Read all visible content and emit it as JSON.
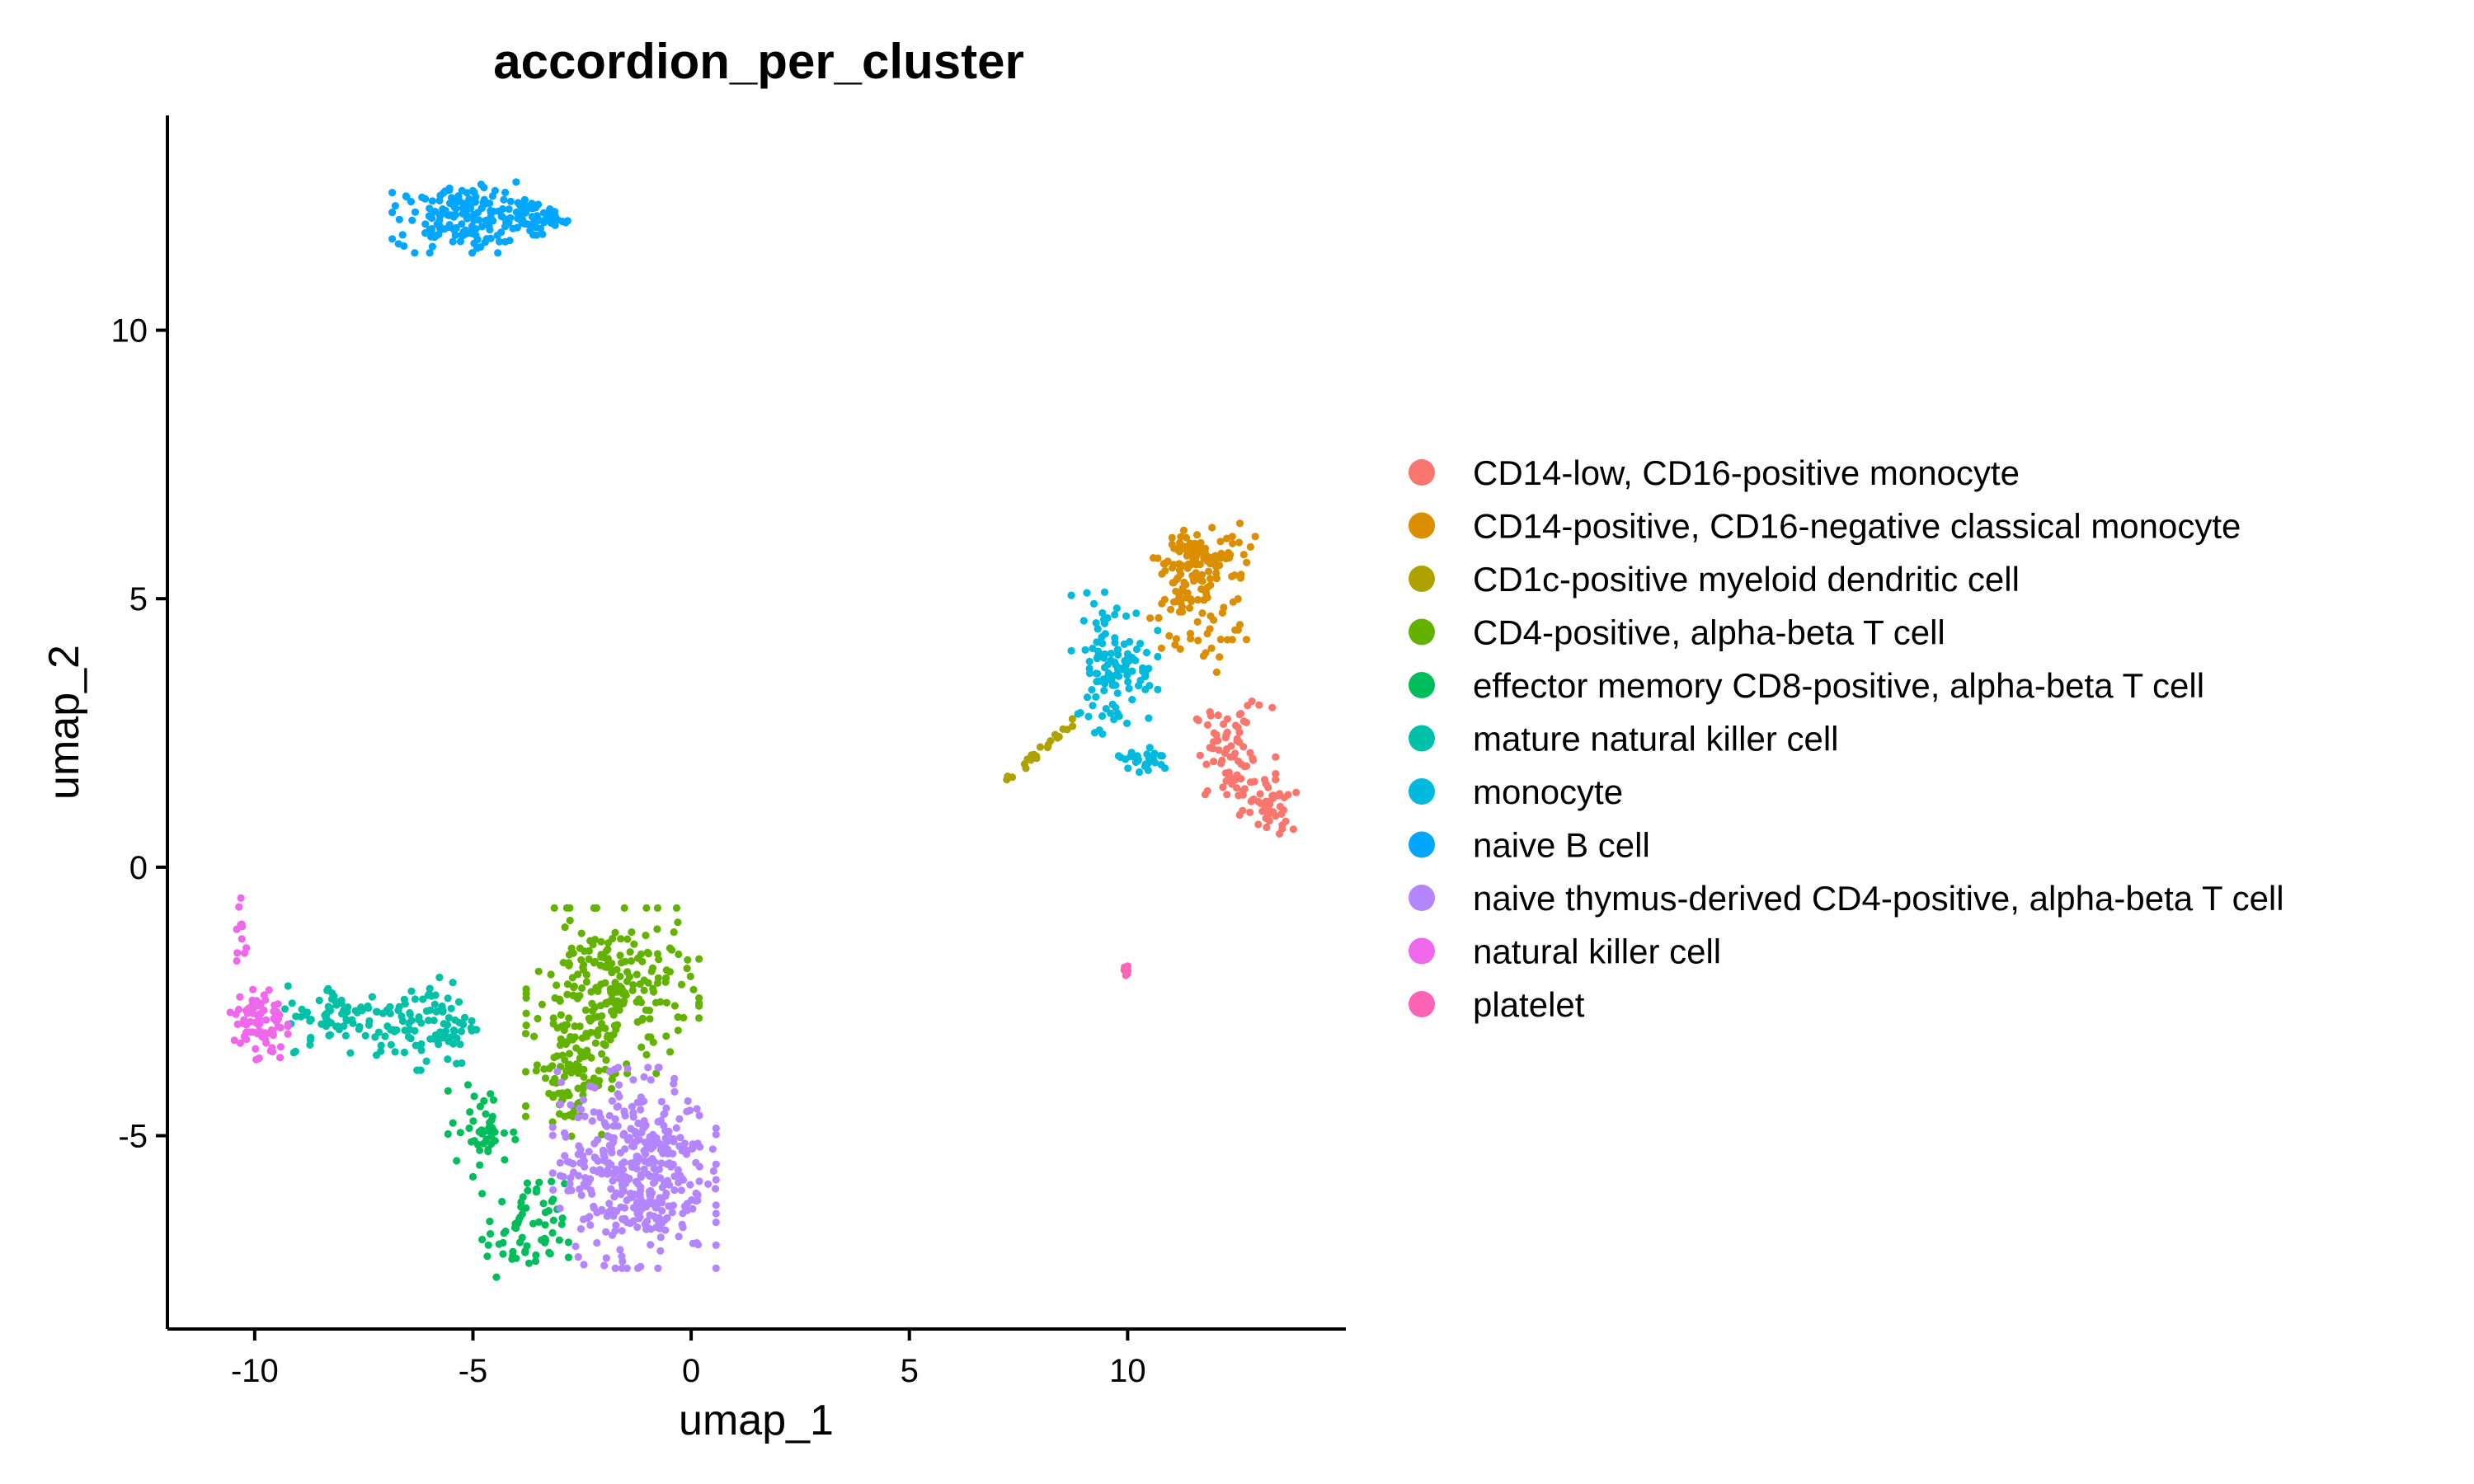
{
  "chart_data": {
    "type": "scatter",
    "title": "accordion_per_cluster",
    "xlabel": "umap_1",
    "ylabel": "umap_2",
    "xlim": [
      -12,
      15
    ],
    "ylim": [
      -8.6,
      14
    ],
    "xticks": [
      -10,
      -5,
      0,
      5,
      10
    ],
    "yticks": [
      -5,
      0,
      5,
      10
    ],
    "xtick_labels": [
      "-10",
      "-5",
      "0",
      "5",
      "10"
    ],
    "ytick_labels": [
      "-5",
      "0",
      "5",
      "10"
    ],
    "grid": false,
    "legend_position": "right",
    "series": [
      {
        "name": "CD14-low, CD16-positive monocyte",
        "color": "#F8766D",
        "count": 120,
        "clusters": [
          {
            "cx": 12.4,
            "cy": 2.1,
            "sx": 0.45,
            "sy": 0.45,
            "weight": 0.6
          },
          {
            "cx": 13.2,
            "cy": 1.1,
            "sx": 0.3,
            "sy": 0.25,
            "weight": 0.4
          }
        ]
      },
      {
        "name": "CD14-positive, CD16-negative classical monocyte",
        "color": "#DB8E00",
        "count": 160,
        "clusters": [
          {
            "cx": 11.8,
            "cy": 5.8,
            "sx": 0.55,
            "sy": 0.3,
            "weight": 0.6
          },
          {
            "cx": 11.2,
            "cy": 4.8,
            "sx": 0.35,
            "sy": 0.45,
            "weight": 0.3
          },
          {
            "cx": 12.3,
            "cy": 4.4,
            "sx": 0.25,
            "sy": 0.35,
            "weight": 0.1
          }
        ]
      },
      {
        "name": "CD1c-positive myeloid dendritic cell",
        "color": "#AEA200",
        "count": 22,
        "line": {
          "x0": 7.2,
          "y0": 1.6,
          "x1": 8.8,
          "y1": 2.7,
          "spread": 0.05
        }
      },
      {
        "name": "CD4-positive, alpha-beta T cell",
        "color": "#64B200",
        "count": 330,
        "clusters": [
          {
            "cx": -1.8,
            "cy": -2.3,
            "sx": 0.9,
            "sy": 0.7,
            "weight": 0.7
          },
          {
            "cx": -2.8,
            "cy": -3.8,
            "sx": 0.45,
            "sy": 0.55,
            "weight": 0.3
          }
        ]
      },
      {
        "name": "effector memory CD8-positive, alpha-beta T cell",
        "color": "#00BD5C",
        "count": 110,
        "clusters": [
          {
            "cx": -3.8,
            "cy": -6.8,
            "sx": 0.45,
            "sy": 0.45,
            "weight": 0.6
          },
          {
            "cx": -4.8,
            "cy": -4.9,
            "sx": 0.35,
            "sy": 0.4,
            "weight": 0.4
          }
        ]
      },
      {
        "name": "mature natural killer cell",
        "color": "#00C1A7",
        "count": 170,
        "clusters": [
          {
            "cx": -6.0,
            "cy": -2.9,
            "sx": 0.55,
            "sy": 0.4,
            "weight": 0.55
          },
          {
            "cx": -8.0,
            "cy": -2.8,
            "sx": 0.65,
            "sy": 0.3,
            "weight": 0.45
          }
        ]
      },
      {
        "name": "monocyte",
        "color": "#00BADE",
        "count": 140,
        "clusters": [
          {
            "cx": 9.7,
            "cy": 3.8,
            "sx": 0.45,
            "sy": 0.6,
            "weight": 0.8
          },
          {
            "cx": 10.3,
            "cy": 2.0,
            "sx": 0.35,
            "sy": 0.15,
            "weight": 0.2
          }
        ]
      },
      {
        "name": "naive B cell",
        "color": "#00A6FF",
        "count": 220,
        "clusters": [
          {
            "cx": -5.2,
            "cy": 12.1,
            "sx": 0.75,
            "sy": 0.3,
            "weight": 0.75
          },
          {
            "cx": -3.6,
            "cy": 12.1,
            "sx": 0.35,
            "sy": 0.15,
            "weight": 0.25
          }
        ]
      },
      {
        "name": "naive thymus-derived CD4-positive, alpha-beta T cell",
        "color": "#B385FF",
        "count": 420,
        "clusters": [
          {
            "cx": -1.3,
            "cy": -5.6,
            "sx": 0.85,
            "sy": 0.85,
            "weight": 1.0
          }
        ]
      },
      {
        "name": "natural killer cell",
        "color": "#EF67EB",
        "count": 90,
        "clusters": [
          {
            "cx": -9.9,
            "cy": -2.9,
            "sx": 0.3,
            "sy": 0.35,
            "weight": 0.88
          },
          {
            "cx": -10.3,
            "cy": -1.3,
            "sx": 0.08,
            "sy": 0.35,
            "weight": 0.12
          }
        ]
      },
      {
        "name": "platelet",
        "color": "#FF63B6",
        "count": 6,
        "clusters": [
          {
            "cx": 9.95,
            "cy": -1.95,
            "sx": 0.06,
            "sy": 0.1,
            "weight": 1.0
          }
        ]
      }
    ]
  }
}
